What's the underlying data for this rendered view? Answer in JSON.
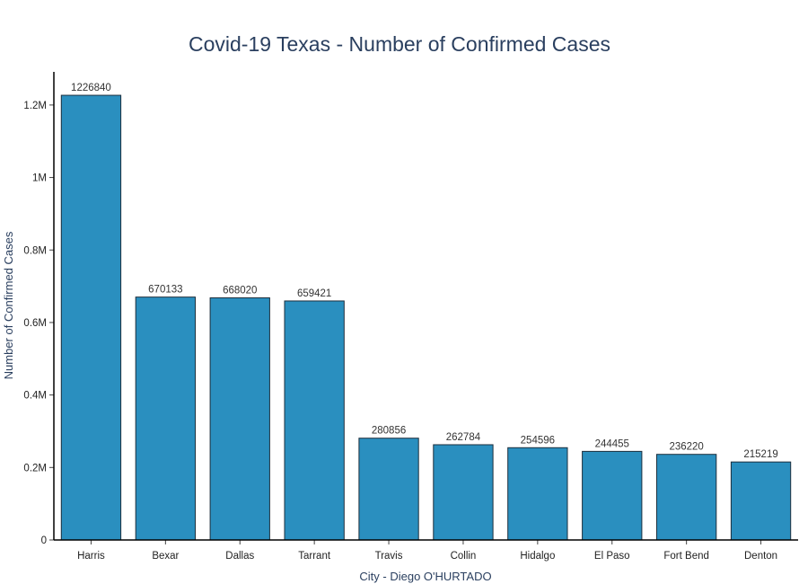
{
  "chart_data": {
    "type": "bar",
    "title": "Covid-19 Texas - Number of Confirmed Cases",
    "xlabel": "City - Diego O'HURTADO",
    "ylabel": "Number of Confirmed Cases",
    "categories": [
      "Harris",
      "Bexar",
      "Dallas",
      "Tarrant",
      "Travis",
      "Collin",
      "Hidalgo",
      "El Paso",
      "Fort Bend",
      "Denton"
    ],
    "values": [
      1226840,
      670133,
      668020,
      659421,
      280856,
      262784,
      254596,
      244455,
      236220,
      215219
    ],
    "data_labels": [
      "1226840",
      "670133",
      "668020",
      "659421",
      "280856",
      "262784",
      "254596",
      "244455",
      "236220",
      "215219"
    ],
    "ylim": [
      0,
      1291410
    ],
    "yticks": [
      0,
      200000,
      400000,
      600000,
      800000,
      1000000,
      1200000
    ],
    "ytick_labels": [
      "0",
      "0.2M",
      "0.4M",
      "0.6M",
      "0.8M",
      "1M",
      "1.2M"
    ],
    "grid": false,
    "bar_color": "#2a8fbf"
  }
}
